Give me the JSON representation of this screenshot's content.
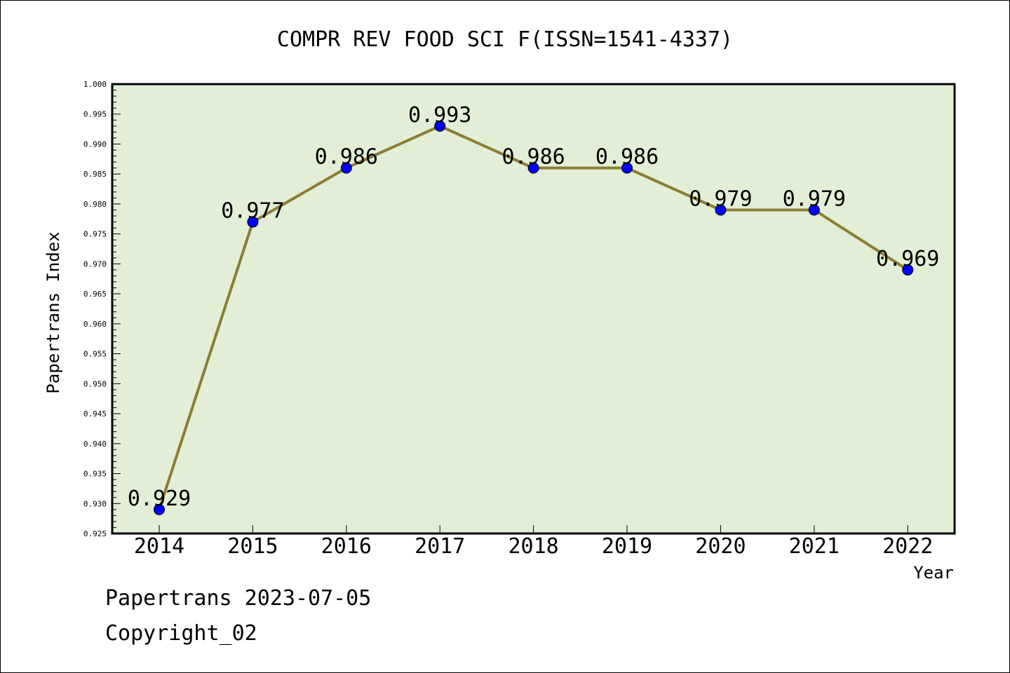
{
  "chart_data": {
    "type": "line",
    "title": "COMPR REV FOOD SCI F(ISSN=1541-4337)",
    "xlabel": "Year",
    "ylabel": "Papertrans Index",
    "categories": [
      "2014",
      "2015",
      "2016",
      "2017",
      "2018",
      "2019",
      "2020",
      "2021",
      "2022"
    ],
    "series": [
      {
        "values": [
          0.929,
          0.977,
          0.986,
          0.993,
          0.986,
          0.986,
          0.979,
          0.979,
          0.969
        ]
      }
    ],
    "data_labels": [
      "0.929",
      "0.977",
      "0.986",
      "0.993",
      "0.986",
      "0.986",
      "0.979",
      "0.979",
      "0.969"
    ],
    "ylim": [
      0.925,
      1.0
    ],
    "yticks": [
      "0.925",
      "0.930",
      "0.935",
      "0.940",
      "0.945",
      "0.950",
      "0.955",
      "0.960",
      "0.965",
      "0.970",
      "0.975",
      "0.980",
      "0.985",
      "0.990",
      "0.995",
      "1.000"
    ],
    "grid": false,
    "legend": "none",
    "colors": {
      "plot_background": "#e2efd6",
      "line": "#8b7d35",
      "marker": "#0000ff"
    }
  },
  "footer": {
    "line1": "Papertrans 2023-07-05",
    "line2": "Copyright_02"
  }
}
